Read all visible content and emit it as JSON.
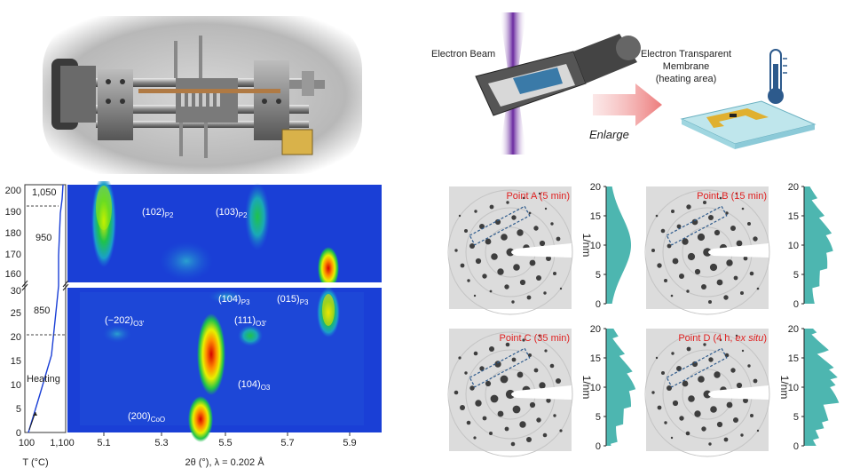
{
  "schematic": {
    "beam_label": "Electron Beam",
    "enlarge_label": "Enlarge",
    "membrane_line1": "Electron Transparent",
    "membrane_line2": "Membrane",
    "membrane_line3": "(heating area)"
  },
  "heatmap": {
    "peaks": [
      {
        "label": "(102)",
        "sub": "P2"
      },
      {
        "label": "(103)",
        "sub": "P2"
      },
      {
        "label": "(104)",
        "sub": "P3"
      },
      {
        "label": "(015)",
        "sub": "P3"
      },
      {
        "label": "(−202)",
        "sub": "O3'"
      },
      {
        "label": "(111)",
        "sub": "O3'"
      },
      {
        "label": "(104)",
        "sub": "O3"
      },
      {
        "label": "(200)",
        "sub": "CoO"
      }
    ],
    "x_ticks": [
      "5.1",
      "5.3",
      "5.5",
      "5.7",
      "5.9"
    ],
    "x_axis_label": "2θ (°), λ = 0.202 Å",
    "y_ticks_upper": [
      "200",
      "190",
      "180",
      "170",
      "160",
      "30"
    ],
    "y_ticks_lower": [
      "25",
      "20",
      "15",
      "10",
      "5",
      "0"
    ],
    "t_ticks": [
      "100",
      "1,100"
    ],
    "t_axis_label": "T (°C)",
    "temps": [
      "1,050",
      "950",
      "850"
    ],
    "heating_label": "Heating"
  },
  "saed_panels": [
    {
      "label": "Point A (5 min)",
      "ticks": [
        "20",
        "15",
        "10",
        "5",
        "0"
      ],
      "axis": "1/nm"
    },
    {
      "label": "Point B (15 min)",
      "ticks": [
        "20",
        "15",
        "10",
        "5",
        "0"
      ],
      "axis": ""
    },
    {
      "label": "Point C (35 min)",
      "ticks": [
        "20",
        "15",
        "10",
        "5",
        "0"
      ],
      "axis": "1/nm"
    },
    {
      "label_main": "Point D (4 h, ",
      "label_em": "ex situ",
      "label_end": ")",
      "ticks": [
        "20",
        "15",
        "10",
        "5",
        "0"
      ],
      "axis": "1/nm"
    }
  ],
  "colors": {
    "heatmap_bg": "#1a3fd6",
    "profile": "#4db6b0",
    "label_red": "#e02020"
  }
}
